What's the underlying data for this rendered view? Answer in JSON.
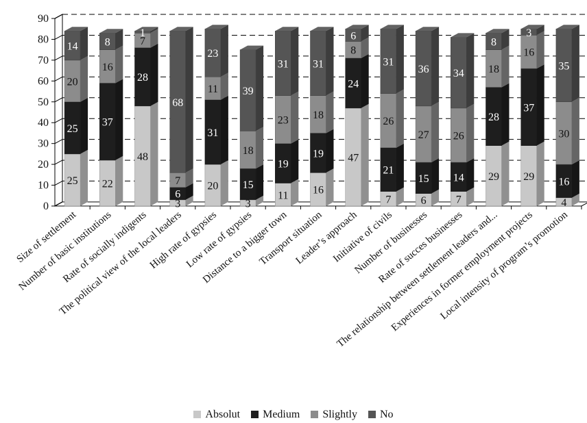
{
  "chart_data": {
    "type": "bar",
    "stacked": true,
    "three_d": true,
    "categories": [
      "Size of settlement",
      "Number of basic institutions",
      "Rate of socially indigents",
      "The political view of the local leaders",
      "High rate of gypsies",
      "Low rate of gypsies",
      "Distance to a bigger town",
      "Transport situation",
      "Leader’s approach",
      "Initiative of civils",
      "Number of businesses",
      "Rate of succes businesses",
      "The relationship between settlement leaders and...",
      "Experiences in former employment projects",
      "Local intensity of program’s promotion"
    ],
    "series": [
      {
        "name": "Absolut",
        "color": "#c8c8c8",
        "values": [
          25,
          22,
          48,
          3,
          20,
          3,
          11,
          16,
          47,
          7,
          6,
          7,
          29,
          29,
          4
        ]
      },
      {
        "name": "Medium",
        "color": "#1e1e1e",
        "values": [
          25,
          37,
          28,
          6,
          31,
          15,
          19,
          19,
          24,
          21,
          15,
          14,
          28,
          37,
          16
        ]
      },
      {
        "name": "Slightly",
        "color": "#8c8c8c",
        "values": [
          20,
          16,
          7,
          7,
          11,
          18,
          23,
          18,
          8,
          26,
          27,
          26,
          18,
          16,
          30
        ]
      },
      {
        "name": "No",
        "color": "#555555",
        "values": [
          14,
          8,
          1,
          68,
          23,
          39,
          31,
          31,
          6,
          31,
          36,
          34,
          8,
          3,
          35
        ]
      }
    ],
    "y_ticks": [
      "0",
      "10",
      "20",
      "30",
      "40",
      "50",
      "60",
      "70",
      "80",
      "90"
    ],
    "ylim": [
      0,
      90
    ],
    "grid": "dashed horizontal",
    "legend_position": "bottom"
  }
}
